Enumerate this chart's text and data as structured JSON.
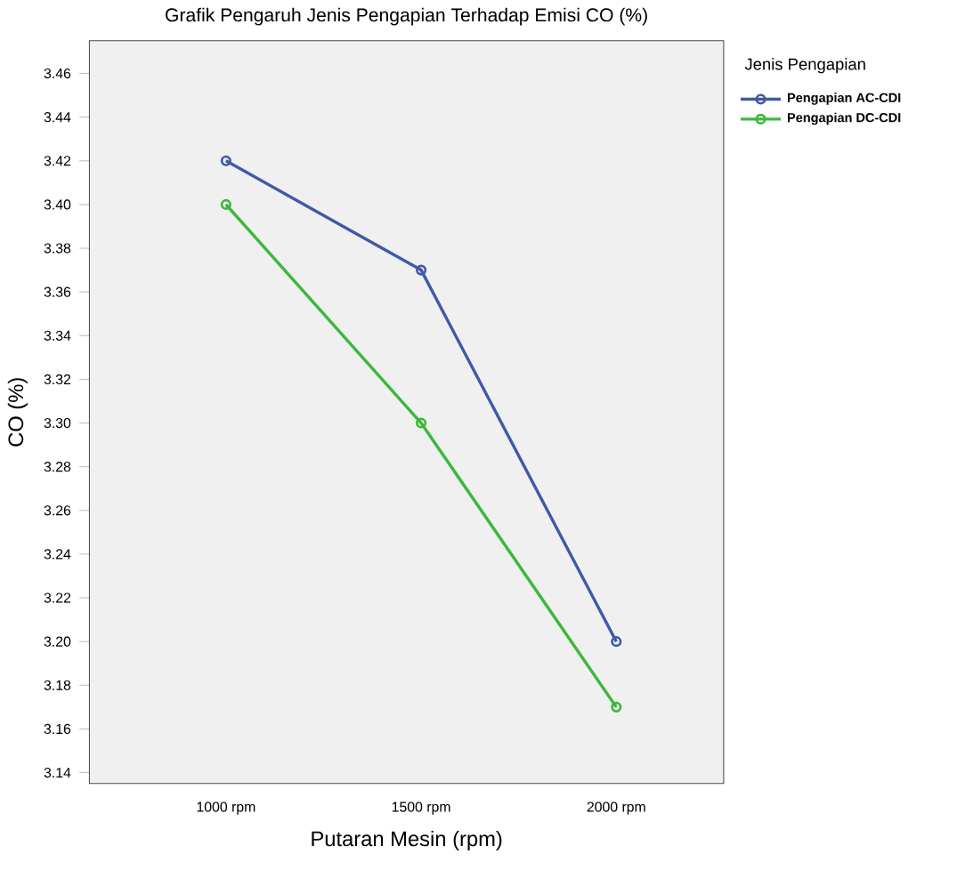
{
  "chart_data": {
    "type": "line",
    "title": "Grafik Pengaruh Jenis Pengapian Terhadap Emisi CO (%)",
    "xlabel": "Putaran Mesin (rpm)",
    "ylabel": "CO (%)",
    "legend_title": "Jenis Pengapian",
    "categories": [
      "1000 rpm",
      "1500 rpm",
      "2000 rpm"
    ],
    "series": [
      {
        "name": "Pengapian AC-CDI",
        "color": "#3f5aa6",
        "values": [
          3.42,
          3.37,
          3.2
        ]
      },
      {
        "name": "Pengapian DC-CDI",
        "color": "#3cb83c",
        "values": [
          3.4,
          3.3,
          3.17
        ]
      }
    ],
    "ylim": [
      3.135,
      3.475
    ],
    "yticks": [
      3.14,
      3.16,
      3.18,
      {
        "value": 3.2,
        "label": "3.20"
      },
      3.22,
      3.24,
      3.26,
      3.28,
      {
        "value": 3.3,
        "label": "3.30"
      },
      3.32,
      3.34,
      3.36,
      3.38,
      {
        "value": 3.4,
        "label": "3.40"
      },
      3.42,
      3.44,
      3.46
    ],
    "legend": "right",
    "marker": "circle",
    "line_style": "solid",
    "grid": false
  }
}
